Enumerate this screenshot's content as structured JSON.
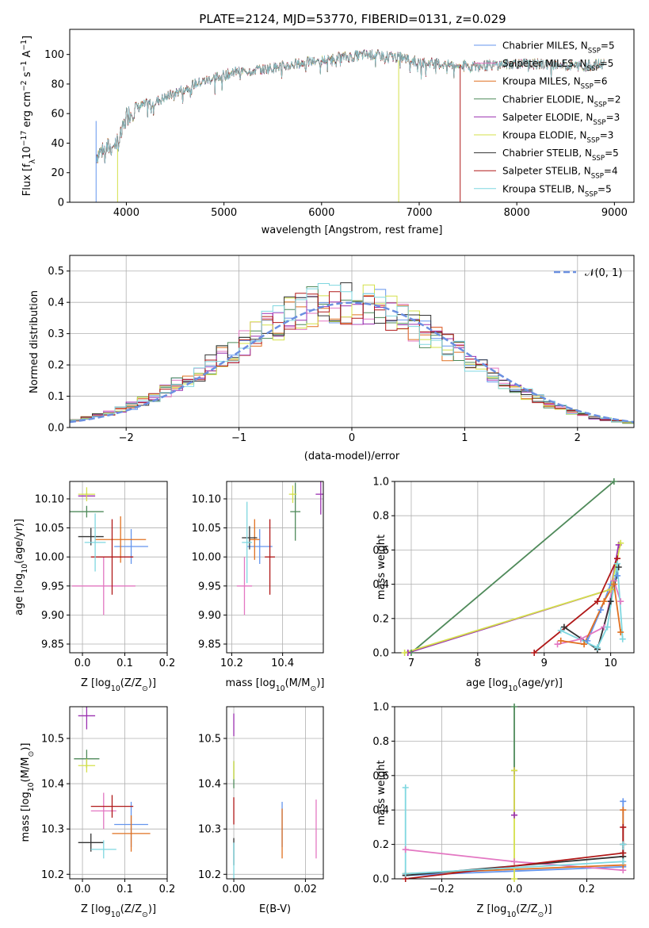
{
  "figure_title": "PLATE=2124, MJD=53770, FIBERID=0131, z=0.029",
  "colors": {
    "Chabrier MILES": "#6495ed",
    "Salpeter MILES": "#e377c2",
    "Kroupa MILES": "#e07020",
    "Chabrier ELODIE": "#4f8a5a",
    "Salpeter ELODIE": "#9b30b0",
    "Kroupa ELODIE": "#d4e04a",
    "Chabrier STELIB": "#333333",
    "Salpeter STELIB": "#b01818",
    "Kroupa STELIB": "#7fd7e0"
  },
  "chart_data": [
    {
      "id": "spectrum",
      "type": "line",
      "title": "PLATE=2124, MJD=53770, FIBERID=0131, z=0.029",
      "xlabel": "wavelength [Angstrom, rest frame]",
      "ylabel_parts": [
        "Flux [f",
        "λ",
        "10",
        "−17",
        " erg cm",
        "−2",
        " s",
        "−1",
        " A",
        "−1",
        "]"
      ],
      "xlim": [
        3420,
        9200
      ],
      "ylim": [
        0,
        117
      ],
      "xticks": [
        4000,
        5000,
        6000,
        7000,
        8000,
        9000
      ],
      "yticks": [
        0,
        20,
        40,
        60,
        80,
        100
      ],
      "grid": false,
      "legend_position": "top-right",
      "legend": [
        {
          "name": "Chabrier MILES",
          "n": "5"
        },
        {
          "name": "Salpeter MILES",
          "n": "5"
        },
        {
          "name": "Kroupa MILES",
          "n": "6"
        },
        {
          "name": "Chabrier ELODIE",
          "n": "2"
        },
        {
          "name": "Salpeter ELODIE",
          "n": "3"
        },
        {
          "name": "Kroupa ELODIE",
          "n": "3"
        },
        {
          "name": "Chabrier STELIB",
          "n": "5"
        },
        {
          "name": "Salpeter STELIB",
          "n": "4"
        },
        {
          "name": "Kroupa STELIB",
          "n": "5"
        }
      ],
      "legend_label_parts": [
        ", N",
        "SSP",
        "="
      ],
      "continuum": [
        [
          3690,
          32
        ],
        [
          3750,
          35
        ],
        [
          3850,
          38
        ],
        [
          3930,
          42
        ],
        [
          3970,
          50
        ],
        [
          4000,
          58
        ],
        [
          4100,
          64
        ],
        [
          4300,
          68
        ],
        [
          4500,
          74
        ],
        [
          4700,
          80
        ],
        [
          4900,
          84
        ],
        [
          5100,
          88
        ],
        [
          5400,
          90
        ],
        [
          5700,
          93
        ],
        [
          6000,
          96
        ],
        [
          6200,
          98
        ],
        [
          6500,
          100
        ],
        [
          6800,
          98
        ],
        [
          7000,
          95
        ],
        [
          7300,
          93
        ],
        [
          7600,
          92
        ],
        [
          8000,
          94
        ],
        [
          8400,
          93
        ],
        [
          8700,
          92
        ],
        [
          8900,
          94
        ]
      ],
      "dropouts": [
        {
          "series": "Kroupa ELODIE",
          "x": 3910,
          "y_from": 36,
          "y_to": 0
        },
        {
          "series": "Kroupa ELODIE",
          "x": 6790,
          "y_from": 96,
          "y_to": 0
        },
        {
          "series": "Salpeter STELIB",
          "x": 7420,
          "y_from": 93,
          "y_to": 0
        },
        {
          "series": "Chabrier MILES",
          "x": 3690,
          "y_from": 55,
          "y_to": 0
        }
      ]
    },
    {
      "id": "residuals",
      "type": "bar",
      "xlabel": "(data-model)/error",
      "ylabel": "Normed distribution",
      "xlim": [
        -2.5,
        2.5
      ],
      "ylim": [
        0,
        0.55
      ],
      "xticks": [
        -2,
        -1,
        0,
        1,
        2
      ],
      "yticks": [
        0.0,
        0.1,
        0.2,
        0.3,
        0.4,
        0.5
      ],
      "grid": true,
      "legend_position": "top-right",
      "reference_curve": {
        "name": "𝒩(0, 1)",
        "mu": 0,
        "sigma": 1,
        "color": "#6b8fe0"
      },
      "bins": {
        "start": -2.5,
        "width": 0.1,
        "count": 50
      }
    },
    {
      "id": "age-vs-z",
      "type": "scatter",
      "xlabel": "Z [log10(Z/Z⊙)]",
      "xlabel_parts": [
        "Z [log",
        "10",
        "(Z/Z",
        "⊙",
        ")]"
      ],
      "ylabel_parts": [
        "age  [log",
        "10",
        "(age/yr)]"
      ],
      "xlim": [
        -0.03,
        0.2
      ],
      "ylim": [
        9.835,
        10.13
      ],
      "xticks": [
        0.0,
        0.1,
        0.2
      ],
      "yticks": [
        9.85,
        9.9,
        9.95,
        10.0,
        10.05,
        10.1
      ],
      "grid": true,
      "points": [
        {
          "series": "Chabrier MILES",
          "x": 0.115,
          "xerr": 0.04,
          "y": 10.018,
          "yerr": 0.03
        },
        {
          "series": "Salpeter MILES",
          "x": 0.05,
          "xerr": 0.075,
          "y": 9.95,
          "yerr": 0.05
        },
        {
          "series": "Kroupa MILES",
          "x": 0.09,
          "xerr": 0.06,
          "y": 10.03,
          "yerr": 0.04
        },
        {
          "series": "Chabrier ELODIE",
          "x": 0.01,
          "xerr": 0.04,
          "y": 10.078,
          "yerr": 0.01
        },
        {
          "series": "Salpeter ELODIE",
          "x": 0.01,
          "xerr": 0.02,
          "y": 10.105,
          "yerr": 0.005
        },
        {
          "series": "Kroupa ELODIE",
          "x": 0.01,
          "xerr": 0.02,
          "y": 10.108,
          "yerr": 0.012
        },
        {
          "series": "Chabrier STELIB",
          "x": 0.02,
          "xerr": 0.03,
          "y": 10.035,
          "yerr": 0.015
        },
        {
          "series": "Salpeter STELIB",
          "x": 0.07,
          "xerr": 0.05,
          "y": 10.0,
          "yerr": 0.065
        },
        {
          "series": "Kroupa STELIB",
          "x": 0.03,
          "xerr": 0.025,
          "y": 10.025,
          "yerr": 0.05
        }
      ]
    },
    {
      "id": "age-vs-mass",
      "type": "scatter",
      "xlabel_parts": [
        "mass [log",
        "10",
        "(M/M",
        "⊙",
        ")]"
      ],
      "xlim": [
        10.18,
        10.56
      ],
      "ylim": [
        9.835,
        10.13
      ],
      "xticks": [
        10.2,
        10.4
      ],
      "yticks": [
        9.85,
        9.9,
        9.95,
        10.0,
        10.05,
        10.1
      ],
      "grid": true,
      "points": [
        {
          "series": "Chabrier MILES",
          "x": 10.31,
          "xerr": 0.05,
          "y": 10.018,
          "yerr": 0.03
        },
        {
          "series": "Salpeter MILES",
          "x": 10.25,
          "xerr": 0.03,
          "y": 9.95,
          "yerr": 0.05
        },
        {
          "series": "Kroupa MILES",
          "x": 10.29,
          "xerr": 0.02,
          "y": 10.03,
          "yerr": 0.035
        },
        {
          "series": "Chabrier ELODIE",
          "x": 10.45,
          "xerr": 0.02,
          "y": 10.078,
          "yerr": 0.05
        },
        {
          "series": "Salpeter ELODIE",
          "x": 10.55,
          "xerr": 0.02,
          "y": 10.108,
          "yerr": 0.035
        },
        {
          "series": "Kroupa ELODIE",
          "x": 10.44,
          "xerr": 0.015,
          "y": 10.108,
          "yerr": 0.015
        },
        {
          "series": "Chabrier STELIB",
          "x": 10.27,
          "xerr": 0.03,
          "y": 10.033,
          "yerr": 0.02
        },
        {
          "series": "Salpeter STELIB",
          "x": 10.35,
          "xerr": 0.02,
          "y": 10.0,
          "yerr": 0.065
        },
        {
          "series": "Kroupa STELIB",
          "x": 10.26,
          "xerr": 0.02,
          "y": 10.025,
          "yerr": 0.07
        }
      ]
    },
    {
      "id": "weight-vs-age",
      "type": "line",
      "xlabel_parts": [
        "age  [log",
        "10",
        "(age/yr)]"
      ],
      "ylabel": "mass weight",
      "xlim": [
        6.75,
        10.35
      ],
      "ylim": [
        0,
        1
      ],
      "xticks": [
        7,
        8,
        9,
        10
      ],
      "yticks": [
        0.0,
        0.2,
        0.4,
        0.6,
        0.8,
        1.0
      ],
      "grid": true,
      "series": [
        {
          "name": "Chabrier MILES",
          "points": [
            [
              9.65,
              0.07
            ],
            [
              9.85,
              0.25
            ],
            [
              10.0,
              0.4
            ],
            [
              10.1,
              0.45
            ]
          ]
        },
        {
          "name": "Salpeter MILES",
          "points": [
            [
              9.2,
              0.05
            ],
            [
              9.55,
              0.08
            ],
            [
              9.9,
              0.15
            ],
            [
              10.05,
              0.42
            ],
            [
              10.15,
              0.3
            ]
          ]
        },
        {
          "name": "Kroupa MILES",
          "points": [
            [
              9.25,
              0.07
            ],
            [
              9.6,
              0.05
            ],
            [
              9.9,
              0.3
            ],
            [
              10.05,
              0.4
            ],
            [
              10.15,
              0.12
            ]
          ]
        },
        {
          "name": "Chabrier ELODIE",
          "points": [
            [
              7.0,
              0.0
            ],
            [
              10.05,
              1.0
            ]
          ]
        },
        {
          "name": "Salpeter ELODIE",
          "points": [
            [
              6.95,
              0.0
            ],
            [
              10.0,
              0.37
            ],
            [
              10.12,
              0.63
            ]
          ]
        },
        {
          "name": "Kroupa ELODIE",
          "points": [
            [
              6.9,
              0.0
            ],
            [
              10.0,
              0.37
            ],
            [
              10.15,
              0.64
            ]
          ]
        },
        {
          "name": "Chabrier STELIB",
          "points": [
            [
              9.3,
              0.15
            ],
            [
              9.8,
              0.02
            ],
            [
              10.0,
              0.3
            ],
            [
              10.12,
              0.5
            ]
          ]
        },
        {
          "name": "Salpeter STELIB",
          "points": [
            [
              8.85,
              0.0
            ],
            [
              9.8,
              0.3
            ],
            [
              10.1,
              0.55
            ]
          ]
        },
        {
          "name": "Kroupa STELIB",
          "points": [
            [
              9.25,
              0.13
            ],
            [
              9.8,
              0.03
            ],
            [
              9.95,
              0.15
            ],
            [
              10.1,
              0.52
            ],
            [
              10.18,
              0.08
            ]
          ]
        }
      ]
    },
    {
      "id": "mass-vs-z",
      "type": "scatter",
      "xlabel_parts": [
        "Z [log",
        "10",
        "(Z/Z",
        "⊙",
        ")]"
      ],
      "ylabel_parts": [
        "mass [log",
        "10",
        "(M/M",
        "⊙",
        ")]"
      ],
      "xlim": [
        -0.03,
        0.2
      ],
      "ylim": [
        10.19,
        10.57
      ],
      "xticks": [
        0.0,
        0.1,
        0.2
      ],
      "yticks": [
        10.2,
        10.3,
        10.4,
        10.5
      ],
      "grid": true,
      "points": [
        {
          "series": "Chabrier MILES",
          "x": 0.115,
          "xerr": 0.04,
          "y": 10.31,
          "yerr": 0.05
        },
        {
          "series": "Salpeter MILES",
          "x": 0.05,
          "xerr": 0.03,
          "y": 10.34,
          "yerr": 0.04
        },
        {
          "series": "Kroupa MILES",
          "x": 0.115,
          "xerr": 0.045,
          "y": 10.29,
          "yerr": 0.04
        },
        {
          "series": "Chabrier ELODIE",
          "x": 0.01,
          "xerr": 0.03,
          "y": 10.455,
          "yerr": 0.02
        },
        {
          "series": "Salpeter ELODIE",
          "x": 0.01,
          "xerr": 0.02,
          "y": 10.55,
          "yerr": 0.03
        },
        {
          "series": "Kroupa ELODIE",
          "x": 0.01,
          "xerr": 0.02,
          "y": 10.44,
          "yerr": 0.015
        },
        {
          "series": "Chabrier STELIB",
          "x": 0.02,
          "xerr": 0.03,
          "y": 10.27,
          "yerr": 0.02
        },
        {
          "series": "Salpeter STELIB",
          "x": 0.07,
          "xerr": 0.05,
          "y": 10.35,
          "yerr": 0.025
        },
        {
          "series": "Kroupa STELIB",
          "x": 0.05,
          "xerr": 0.03,
          "y": 10.255,
          "yerr": 0.02
        }
      ]
    },
    {
      "id": "mass-vs-ebv",
      "type": "scatter",
      "xlabel": "E(B-V)",
      "xlim": [
        -0.002,
        0.025
      ],
      "ylim": [
        10.19,
        10.57
      ],
      "xticks": [
        0.0,
        0.02
      ],
      "yticks": [
        10.2,
        10.3,
        10.4,
        10.5
      ],
      "grid": true,
      "points": [
        {
          "series": "Chabrier MILES",
          "x": 0.0135,
          "xerr": 0.0,
          "y": 10.31,
          "yerr": 0.05
        },
        {
          "series": "Salpeter MILES",
          "x": 0.023,
          "xerr": 0.0,
          "y": 10.3,
          "yerr": 0.065
        },
        {
          "series": "Kroupa MILES",
          "x": 0.0135,
          "xerr": 0.0,
          "y": 10.29,
          "yerr": 0.055
        },
        {
          "series": "Chabrier ELODIE",
          "x": 0.0,
          "xerr": 0.0,
          "y": 10.42,
          "yerr": 0.03
        },
        {
          "series": "Salpeter ELODIE",
          "x": 0.0,
          "xerr": 0.0,
          "y": 10.53,
          "yerr": 0.025
        },
        {
          "series": "Kroupa ELODIE",
          "x": 0.0,
          "xerr": 0.0,
          "y": 10.43,
          "yerr": 0.02
        },
        {
          "series": "Chabrier STELIB",
          "x": 0.0,
          "xerr": 0.0,
          "y": 10.25,
          "yerr": 0.03
        },
        {
          "series": "Salpeter STELIB",
          "x": 0.0,
          "xerr": 0.0,
          "y": 10.34,
          "yerr": 0.03
        },
        {
          "series": "Kroupa STELIB",
          "x": 0.0,
          "xerr": 0.0,
          "y": 10.23,
          "yerr": 0.04
        }
      ]
    },
    {
      "id": "weight-vs-z",
      "type": "line",
      "xlabel_parts": [
        "Z [log",
        "10",
        "(Z/Z",
        "⊙",
        ")]"
      ],
      "ylabel": "mass weight",
      "xlim": [
        -0.33,
        0.33
      ],
      "ylim": [
        0,
        1
      ],
      "xticks": [
        -0.2,
        0.0,
        0.2
      ],
      "yticks": [
        0.0,
        0.2,
        0.4,
        0.6,
        0.8,
        1.0
      ],
      "grid": true,
      "series": [
        {
          "name": "Chabrier MILES",
          "points": [
            [
              -0.3,
              0.02
            ],
            [
              0.3,
              0.07
            ],
            [
              0.3,
              0.45
            ]
          ]
        },
        {
          "name": "Salpeter MILES",
          "points": [
            [
              -0.3,
              0.17
            ],
            [
              0.0,
              0.1
            ],
            [
              0.3,
              0.05
            ]
          ]
        },
        {
          "name": "Kroupa MILES",
          "points": [
            [
              -0.3,
              0.03
            ],
            [
              0.3,
              0.08
            ],
            [
              0.3,
              0.4
            ]
          ]
        },
        {
          "name": "Chabrier ELODIE",
          "points": [
            [
              0.0,
              1.0
            ],
            [
              0.0,
              0.63
            ]
          ]
        },
        {
          "name": "Salpeter ELODIE",
          "points": [
            [
              0.0,
              0.63
            ],
            [
              0.0,
              0.37
            ]
          ]
        },
        {
          "name": "Kroupa ELODIE",
          "points": [
            [
              0.0,
              0.63
            ],
            [
              0.0,
              0.0
            ]
          ]
        },
        {
          "name": "Chabrier STELIB",
          "points": [
            [
              -0.3,
              0.02
            ],
            [
              0.3,
              0.13
            ],
            [
              0.3,
              0.2
            ]
          ]
        },
        {
          "name": "Salpeter STELIB",
          "points": [
            [
              -0.3,
              0.0
            ],
            [
              0.3,
              0.15
            ],
            [
              0.3,
              0.3
            ]
          ]
        },
        {
          "name": "Kroupa STELIB",
          "points": [
            [
              -0.3,
              0.53
            ],
            [
              -0.3,
              0.03
            ],
            [
              0.3,
              0.1
            ],
            [
              0.3,
              0.2
            ]
          ]
        }
      ]
    }
  ]
}
